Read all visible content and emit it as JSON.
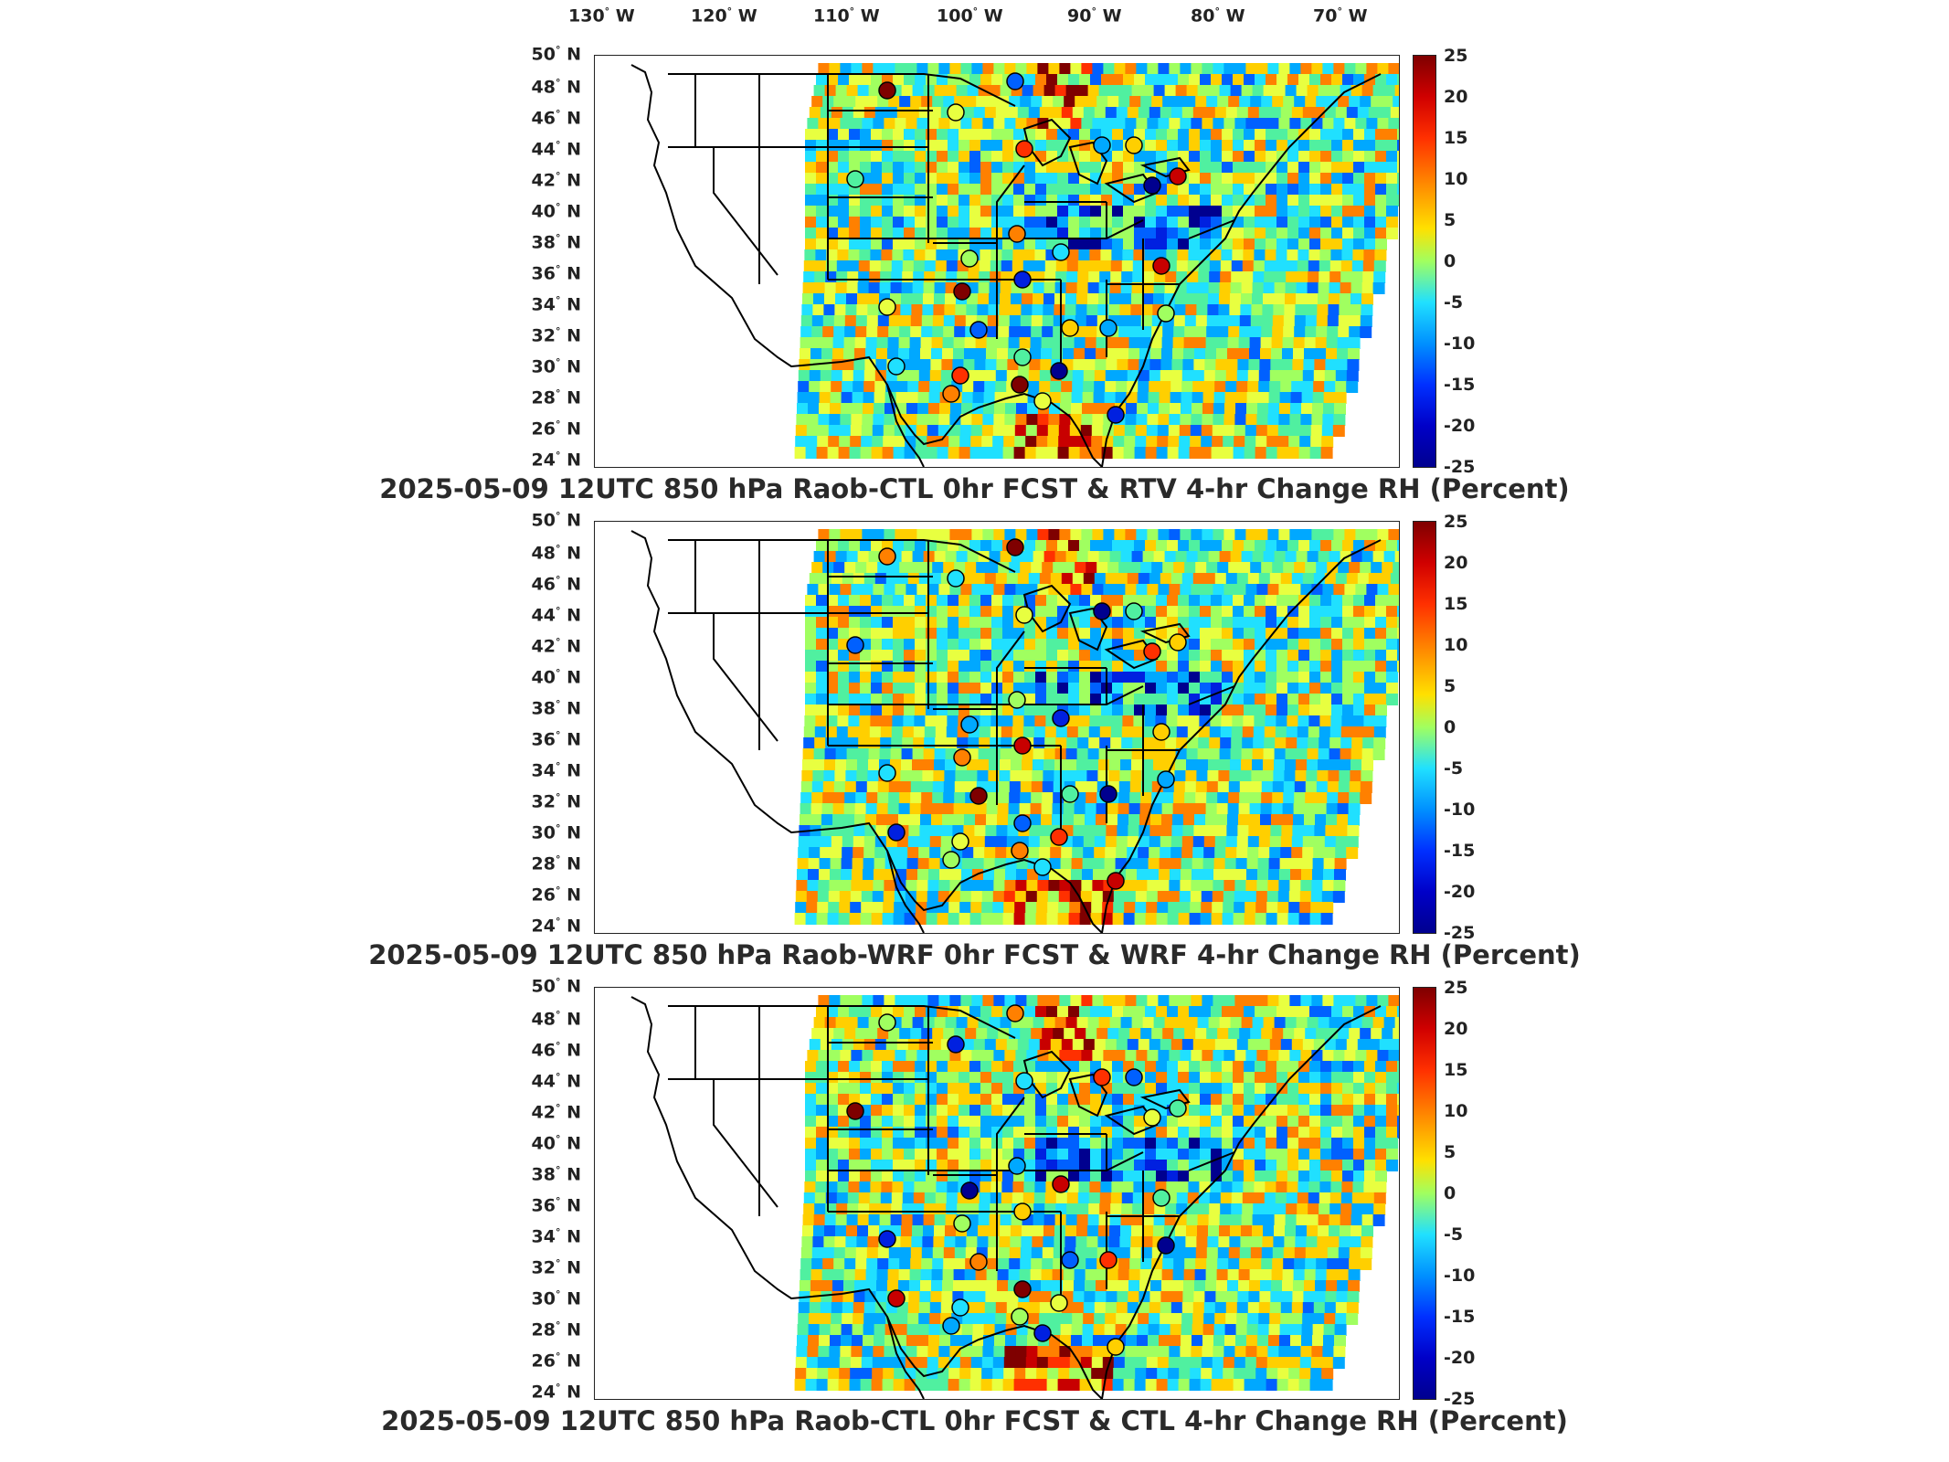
{
  "map": {
    "lon_labels": [
      "130",
      "120",
      "110",
      "100",
      "90",
      "80",
      "70"
    ],
    "lon_suffix": "W",
    "lat_labels": [
      "50",
      "48",
      "46",
      "44",
      "42",
      "40",
      "38",
      "36",
      "34",
      "32",
      "30",
      "28",
      "26",
      "24"
    ],
    "lat_suffix": "N",
    "colorbar": {
      "ticks": [
        "25",
        "20",
        "15",
        "10",
        "5",
        "0",
        "-5",
        "-10",
        "-15",
        "-20",
        "-25"
      ],
      "range": [
        -25,
        25
      ],
      "colors": [
        "#7f0000",
        "#ff3000",
        "#ffe000",
        "#a0ff60",
        "#20e0ff",
        "#0030ff",
        "#00008f"
      ]
    },
    "panels": [
      {
        "title": "2025-05-09 12UTC 850 hPa Raob-CTL 0hr FCST & RTV 4-hr Change RH (Percent)"
      },
      {
        "title": "2025-05-09 12UTC 850 hPa Raob-WRF 0hr FCST & WRF 4-hr Change RH (Percent)"
      },
      {
        "title": "2025-05-09 12UTC 850 hPa Raob-CTL 0hr FCST & CTL 4-hr Change RH (Percent)"
      }
    ]
  }
}
